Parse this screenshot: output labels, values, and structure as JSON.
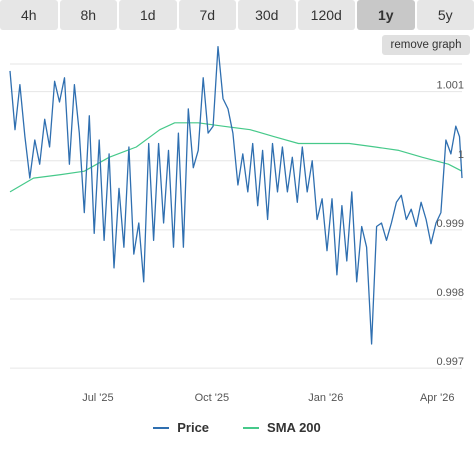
{
  "tabs": [
    {
      "label": "4h"
    },
    {
      "label": "8h"
    },
    {
      "label": "1d"
    },
    {
      "label": "7d"
    },
    {
      "label": "30d"
    },
    {
      "label": "120d"
    },
    {
      "label": "1y",
      "active": true
    },
    {
      "label": "5y"
    }
  ],
  "remove_graph_label": "remove graph",
  "colors": {
    "price": "#2f6fb0",
    "sma": "#46c98a",
    "grid": "#e6e6e6"
  },
  "chart_data": {
    "type": "line",
    "ylim": [
      0.9968,
      1.0014
    ],
    "y_ticks": [
      {
        "value": 1.001,
        "label": "1.001"
      },
      {
        "value": 1.0,
        "label": "1"
      },
      {
        "value": 0.999,
        "label": "0.999"
      },
      {
        "value": 0.998,
        "label": "0.998"
      },
      {
        "value": 0.997,
        "label": "0.997"
      }
    ],
    "x_range": [
      "2025-04-21",
      "2026-04-21"
    ],
    "x_ticks": [
      {
        "date": "2025-07-01",
        "label": "Jul '25"
      },
      {
        "date": "2025-10-01",
        "label": "Oct '25"
      },
      {
        "date": "2026-01-01",
        "label": "Jan '26"
      },
      {
        "date": "2026-04-01",
        "label": "Apr '26"
      }
    ],
    "grid": true,
    "legend_position": "bottom-center",
    "series": [
      {
        "name": "Price",
        "points": [
          [
            "2025-04-21",
            1.0013
          ],
          [
            "2025-04-25",
            1.00045
          ],
          [
            "2025-04-29",
            1.0011
          ],
          [
            "2025-05-03",
            1.00035
          ],
          [
            "2025-05-07",
            0.99975
          ],
          [
            "2025-05-11",
            1.0003
          ],
          [
            "2025-05-15",
            0.99995
          ],
          [
            "2025-05-19",
            1.0006
          ],
          [
            "2025-05-23",
            1.0002
          ],
          [
            "2025-05-27",
            1.00115
          ],
          [
            "2025-05-31",
            1.00085
          ],
          [
            "2025-06-04",
            1.0012
          ],
          [
            "2025-06-08",
            0.99995
          ],
          [
            "2025-06-12",
            1.0011
          ],
          [
            "2025-06-16",
            1.0004
          ],
          [
            "2025-06-20",
            0.99925
          ],
          [
            "2025-06-24",
            1.00065
          ],
          [
            "2025-06-28",
            0.99895
          ],
          [
            "2025-07-02",
            1.0003
          ],
          [
            "2025-07-06",
            0.99885
          ],
          [
            "2025-07-10",
            1.0001
          ],
          [
            "2025-07-14",
            0.99845
          ],
          [
            "2025-07-18",
            0.9996
          ],
          [
            "2025-07-22",
            0.99875
          ],
          [
            "2025-07-26",
            1.0002
          ],
          [
            "2025-07-30",
            0.99865
          ],
          [
            "2025-08-03",
            0.9991
          ],
          [
            "2025-08-07",
            0.99825
          ],
          [
            "2025-08-11",
            1.00025
          ],
          [
            "2025-08-15",
            0.99885
          ],
          [
            "2025-08-19",
            1.00025
          ],
          [
            "2025-08-23",
            0.9991
          ],
          [
            "2025-08-27",
            1.00015
          ],
          [
            "2025-08-31",
            0.99875
          ],
          [
            "2025-09-04",
            1.0004
          ],
          [
            "2025-09-08",
            0.99875
          ],
          [
            "2025-09-12",
            1.00075
          ],
          [
            "2025-09-16",
            0.9999
          ],
          [
            "2025-09-20",
            1.00015
          ],
          [
            "2025-09-24",
            1.0012
          ],
          [
            "2025-09-28",
            1.0004
          ],
          [
            "2025-10-02",
            1.0005
          ],
          [
            "2025-10-06",
            1.00165
          ],
          [
            "2025-10-10",
            1.0009
          ],
          [
            "2025-10-14",
            1.00075
          ],
          [
            "2025-10-18",
            1.0004
          ],
          [
            "2025-10-22",
            0.99965
          ],
          [
            "2025-10-26",
            1.0001
          ],
          [
            "2025-10-30",
            0.99955
          ],
          [
            "2025-11-03",
            1.00025
          ],
          [
            "2025-11-07",
            0.99935
          ],
          [
            "2025-11-11",
            1.00015
          ],
          [
            "2025-11-15",
            0.99915
          ],
          [
            "2025-11-19",
            1.00025
          ],
          [
            "2025-11-23",
            0.99955
          ],
          [
            "2025-11-27",
            1.0002
          ],
          [
            "2025-12-01",
            0.99955
          ],
          [
            "2025-12-05",
            1.00005
          ],
          [
            "2025-12-09",
            0.9994
          ],
          [
            "2025-12-13",
            1.0002
          ],
          [
            "2025-12-17",
            0.99955
          ],
          [
            "2025-12-21",
            1.0
          ],
          [
            "2025-12-25",
            0.99915
          ],
          [
            "2025-12-29",
            0.99945
          ],
          [
            "2026-01-02",
            0.9987
          ],
          [
            "2026-01-06",
            0.99945
          ],
          [
            "2026-01-10",
            0.99835
          ],
          [
            "2026-01-14",
            0.99935
          ],
          [
            "2026-01-18",
            0.99855
          ],
          [
            "2026-01-22",
            0.99955
          ],
          [
            "2026-01-26",
            0.99825
          ],
          [
            "2026-01-30",
            0.99905
          ],
          [
            "2026-02-03",
            0.99875
          ],
          [
            "2026-02-07",
            0.99735
          ],
          [
            "2026-02-11",
            0.99905
          ],
          [
            "2026-02-15",
            0.9991
          ],
          [
            "2026-02-19",
            0.99885
          ],
          [
            "2026-02-23",
            0.9991
          ],
          [
            "2026-02-27",
            0.9994
          ],
          [
            "2026-03-03",
            0.9995
          ],
          [
            "2026-03-07",
            0.99915
          ],
          [
            "2026-03-11",
            0.9993
          ],
          [
            "2026-03-15",
            0.99905
          ],
          [
            "2026-03-19",
            0.9994
          ],
          [
            "2026-03-23",
            0.99915
          ],
          [
            "2026-03-27",
            0.9988
          ],
          [
            "2026-03-31",
            0.9991
          ],
          [
            "2026-04-04",
            0.99925
          ],
          [
            "2026-04-08",
            1.0003
          ],
          [
            "2026-04-12",
            1.0001
          ],
          [
            "2026-04-16",
            1.0005
          ],
          [
            "2026-04-19",
            1.00035
          ],
          [
            "2026-04-21",
            0.99975
          ]
        ]
      },
      {
        "name": "SMA 200",
        "points": [
          [
            "2025-04-21",
            0.99955
          ],
          [
            "2025-05-10",
            0.99975
          ],
          [
            "2025-06-01",
            0.9998
          ],
          [
            "2025-06-20",
            0.99985
          ],
          [
            "2025-07-10",
            1.00005
          ],
          [
            "2025-08-01",
            1.0002
          ],
          [
            "2025-08-20",
            1.00045
          ],
          [
            "2025-09-01",
            1.00055
          ],
          [
            "2025-09-20",
            1.00055
          ],
          [
            "2025-10-10",
            1.0005
          ],
          [
            "2025-11-01",
            1.00045
          ],
          [
            "2025-11-20",
            1.00035
          ],
          [
            "2025-12-10",
            1.00025
          ],
          [
            "2025-12-31",
            1.00025
          ],
          [
            "2026-01-20",
            1.00025
          ],
          [
            "2026-02-10",
            1.0002
          ],
          [
            "2026-03-01",
            1.00015
          ],
          [
            "2026-03-20",
            1.00005
          ],
          [
            "2026-04-10",
            0.99995
          ],
          [
            "2026-04-21",
            0.99985
          ]
        ]
      }
    ]
  }
}
